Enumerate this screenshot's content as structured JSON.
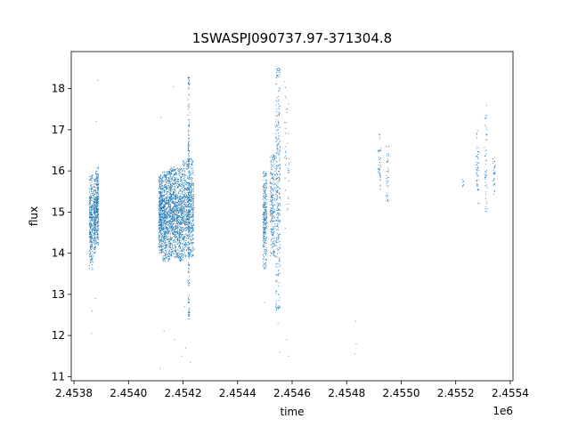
{
  "chart_data": {
    "type": "scatter",
    "title": "1SWASPJ090737.97-371304.8",
    "xlabel": "time",
    "ylabel": "flux",
    "x_offset_label": "1e6",
    "xlim": [
      2453790,
      2455410
    ],
    "ylim": [
      10.9,
      18.9
    ],
    "x_ticks": [
      2453800,
      2454000,
      2454200,
      2454400,
      2454600,
      2454800,
      2455000,
      2455200,
      2455400
    ],
    "x_tick_labels": [
      "2.4538",
      "2.4540",
      "2.4542",
      "2.4544",
      "2.4546",
      "2.4548",
      "2.4550",
      "2.4552",
      "2.4554"
    ],
    "y_ticks": [
      11,
      12,
      13,
      14,
      15,
      16,
      17,
      18
    ],
    "y_tick_labels": [
      "11",
      "12",
      "13",
      "14",
      "15",
      "16",
      "17",
      "18"
    ],
    "grid": false,
    "marker_color": "#1f77b4",
    "clusters": [
      {
        "x_range": [
          2453856,
          2453869
        ],
        "flux_range": [
          13.6,
          15.9
        ],
        "count": 300
      },
      {
        "x_range": [
          2453871,
          2453879
        ],
        "flux_range": [
          14.0,
          15.8
        ],
        "count": 200
      },
      {
        "x_range": [
          2453880,
          2453890
        ],
        "flux_range": [
          14.2,
          16.1
        ],
        "count": 280
      },
      {
        "x_range": [
          2454111,
          2454125
        ],
        "flux_range": [
          14.0,
          15.9
        ],
        "count": 400
      },
      {
        "x_range": [
          2454125,
          2454150
        ],
        "flux_range": [
          13.8,
          16.0
        ],
        "count": 550
      },
      {
        "x_range": [
          2454150,
          2454175
        ],
        "flux_range": [
          13.9,
          16.1
        ],
        "count": 550
      },
      {
        "x_range": [
          2454175,
          2454200
        ],
        "flux_range": [
          13.8,
          16.1
        ],
        "count": 500
      },
      {
        "x_range": [
          2454200,
          2454240
        ],
        "flux_range": [
          13.9,
          16.3
        ],
        "count": 650
      },
      {
        "x_range": [
          2454218,
          2454224
        ],
        "flux_range": [
          12.4,
          18.3
        ],
        "count": 260
      },
      {
        "x_range": [
          2454493,
          2454507
        ],
        "flux_range": [
          13.6,
          16.0
        ],
        "count": 280
      },
      {
        "x_range": [
          2454520,
          2454538
        ],
        "flux_range": [
          13.9,
          16.4
        ],
        "count": 240
      },
      {
        "x_range": [
          2454540,
          2454556
        ],
        "flux_range": [
          12.6,
          18.5
        ],
        "count": 320
      },
      {
        "x_range": [
          2454570,
          2454590
        ],
        "flux_range": [
          14.5,
          18.4
        ],
        "count": 40
      },
      {
        "x_range": [
          2454915,
          2454925
        ],
        "flux_range": [
          15.3,
          17.0
        ],
        "count": 40
      },
      {
        "x_range": [
          2454945,
          2454955
        ],
        "flux_range": [
          15.1,
          16.6
        ],
        "count": 40
      },
      {
        "x_range": [
          2455225,
          2455230
        ],
        "flux_range": [
          15.6,
          15.8
        ],
        "count": 8
      },
      {
        "x_range": [
          2455275,
          2455285
        ],
        "flux_range": [
          15.2,
          17.0
        ],
        "count": 50
      },
      {
        "x_range": [
          2455305,
          2455315
        ],
        "flux_range": [
          15.0,
          17.6
        ],
        "count": 50
      },
      {
        "x_range": [
          2455335,
          2455345
        ],
        "flux_range": [
          15.4,
          16.4
        ],
        "count": 30
      }
    ],
    "outliers": [
      [
        2453864,
        12.05
      ],
      [
        2453867,
        12.6
      ],
      [
        2453887,
        18.2
      ],
      [
        2453882,
        17.2
      ],
      [
        2453879,
        12.9
      ],
      [
        2454115,
        11.2
      ],
      [
        2454130,
        12.1
      ],
      [
        2454165,
        18.05
      ],
      [
        2454168,
        11.9
      ],
      [
        2454196,
        11.5
      ],
      [
        2454210,
        11.7
      ],
      [
        2454227,
        11.35
      ],
      [
        2454205,
        12.7
      ],
      [
        2454118,
        17.3
      ],
      [
        2454548,
        12.3
      ],
      [
        2454555,
        11.6
      ],
      [
        2454580,
        11.9
      ],
      [
        2454586,
        11.5
      ],
      [
        2454500,
        12.8
      ],
      [
        2454832,
        12.35
      ],
      [
        2454835,
        11.8
      ],
      [
        2454830,
        11.55
      ]
    ]
  }
}
